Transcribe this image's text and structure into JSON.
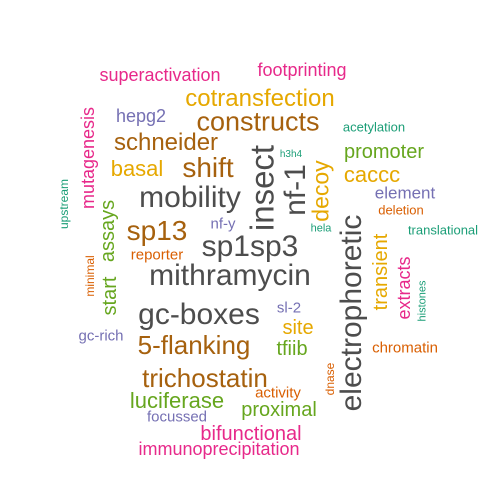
{
  "colors": {
    "gray": "#4d4d4d",
    "orange_brown": "#a6610e",
    "pink": "#e7298a",
    "gold": "#e6a800",
    "green": "#66a61e",
    "teal": "#1b9e77",
    "purple": "#7570b3",
    "rust": "#d95f02"
  },
  "words": [
    {
      "text": "superactivation",
      "color": "pink"
    },
    {
      "text": "footprinting",
      "color": "pink"
    },
    {
      "text": "cotransfection",
      "color": "gold"
    },
    {
      "text": "hepg2",
      "color": "purple"
    },
    {
      "text": "constructs",
      "color": "orange_brown"
    },
    {
      "text": "acetylation",
      "color": "teal"
    },
    {
      "text": "schneider",
      "color": "orange_brown"
    },
    {
      "text": "mutagenesis",
      "color": "pink"
    },
    {
      "text": "promoter",
      "color": "green"
    },
    {
      "text": "h3h4",
      "color": "teal"
    },
    {
      "text": "basal",
      "color": "gold"
    },
    {
      "text": "shift",
      "color": "orange_brown"
    },
    {
      "text": "insect",
      "color": "gray"
    },
    {
      "text": "nf-1",
      "color": "gray"
    },
    {
      "text": "decoy",
      "color": "gold"
    },
    {
      "text": "caccc",
      "color": "gold"
    },
    {
      "text": "upstream",
      "color": "teal"
    },
    {
      "text": "mobility",
      "color": "gray"
    },
    {
      "text": "element",
      "color": "purple"
    },
    {
      "text": "deletion",
      "color": "rust"
    },
    {
      "text": "assays",
      "color": "green"
    },
    {
      "text": "sp13",
      "color": "orange_brown"
    },
    {
      "text": "nf-y",
      "color": "purple"
    },
    {
      "text": "electrophoretic",
      "color": "gray"
    },
    {
      "text": "hela",
      "color": "teal"
    },
    {
      "text": "translational",
      "color": "teal"
    },
    {
      "text": "sp1sp3",
      "color": "gray"
    },
    {
      "text": "reporter",
      "color": "rust"
    },
    {
      "text": "transient",
      "color": "gold"
    },
    {
      "text": "minimal",
      "color": "rust"
    },
    {
      "text": "mithramycin",
      "color": "gray"
    },
    {
      "text": "extracts",
      "color": "pink"
    },
    {
      "text": "start",
      "color": "green"
    },
    {
      "text": "histones",
      "color": "teal"
    },
    {
      "text": "gc-boxes",
      "color": "gray"
    },
    {
      "text": "sl-2",
      "color": "purple"
    },
    {
      "text": "site",
      "color": "gold"
    },
    {
      "text": "gc-rich",
      "color": "purple"
    },
    {
      "text": "5-flanking",
      "color": "orange_brown"
    },
    {
      "text": "tfiib",
      "color": "green"
    },
    {
      "text": "chromatin",
      "color": "rust"
    },
    {
      "text": "trichostatin",
      "color": "orange_brown"
    },
    {
      "text": "dnase",
      "color": "rust"
    },
    {
      "text": "activity",
      "color": "rust"
    },
    {
      "text": "luciferase",
      "color": "green"
    },
    {
      "text": "proximal",
      "color": "green"
    },
    {
      "text": "focussed",
      "color": "purple"
    },
    {
      "text": "bifunctional",
      "color": "pink"
    },
    {
      "text": "immunoprecipitation",
      "color": "pink"
    }
  ]
}
